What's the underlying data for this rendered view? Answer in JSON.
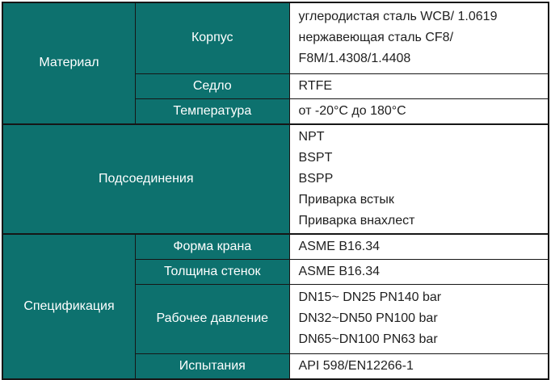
{
  "colors": {
    "accent": "#0d716e",
    "border": "#161616",
    "label_text": "#ffffff",
    "value_text": "#1f1f1f"
  },
  "table": {
    "sections": [
      {
        "category": "Материал",
        "rows": [
          {
            "label": "Корпус",
            "value": "углеродистая сталь WCB/ 1.0619\nнержавеющая сталь CF8/\nF8M/1.4308/1.4408"
          },
          {
            "label": "Седло",
            "value": "RTFE"
          },
          {
            "label": "Температура",
            "value": "от -20°C до 180°C"
          }
        ]
      },
      {
        "category": "Подсоединения",
        "rows": [
          {
            "value": "NPT\nBSPT\nBSPP\nПриварка встык\nПриварка внахлест"
          }
        ]
      },
      {
        "category": "Спецификация",
        "rows": [
          {
            "label": "Форма крана",
            "value": "ASME B16.34"
          },
          {
            "label": "Толщина стенок",
            "value": "ASME B16.34"
          },
          {
            "label": "Рабочее давление",
            "value": "DN15~ DN25 PN140 bar\nDN32~DN50 PN100 bar\nDN65~DN100 PN63 bar"
          },
          {
            "label": "Испытания",
            "value": "API 598/EN12266-1"
          }
        ]
      }
    ]
  }
}
